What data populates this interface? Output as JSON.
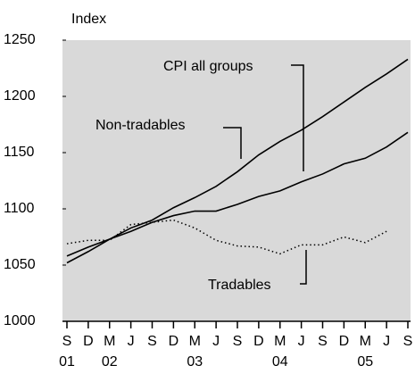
{
  "chart_data": {
    "type": "line",
    "y_label": "Index",
    "categories": [
      "S",
      "D",
      "M",
      "J",
      "S",
      "D",
      "M",
      "J",
      "S",
      "D",
      "M",
      "J",
      "S",
      "D",
      "M",
      "J",
      "S"
    ],
    "category_years": [
      "01",
      null,
      "02",
      null,
      null,
      null,
      "03",
      null,
      null,
      null,
      "04",
      null,
      null,
      null,
      "05",
      null,
      null
    ],
    "series": [
      {
        "name": "CPI all groups",
        "color": "#000000",
        "style": "solid",
        "values": [
          1052,
          1062,
          1073,
          1083,
          1090,
          1101,
          1110,
          1120,
          1133,
          1148,
          1160,
          1170,
          1182,
          1195,
          1208,
          1220,
          1233
        ]
      },
      {
        "name": "Non-tradables",
        "color": "#000000",
        "style": "solid",
        "values": [
          1058,
          1066,
          1073,
          1080,
          1088,
          1094,
          1098,
          1098,
          1104,
          1111,
          1116,
          1124,
          1131,
          1140,
          1145,
          1155,
          1168
        ]
      },
      {
        "name": "Tradables",
        "color": "#000000",
        "style": "dotted",
        "values": [
          1069,
          1072,
          1072,
          1086,
          1088,
          1090,
          1083,
          1072,
          1067,
          1066,
          1060,
          1068,
          1068,
          1075,
          1070,
          1080,
          null
        ]
      }
    ],
    "ylim": [
      1000,
      1250
    ],
    "yticks": [
      1000,
      1050,
      1100,
      1150,
      1200,
      1250
    ],
    "background": "#d9d9d9"
  }
}
